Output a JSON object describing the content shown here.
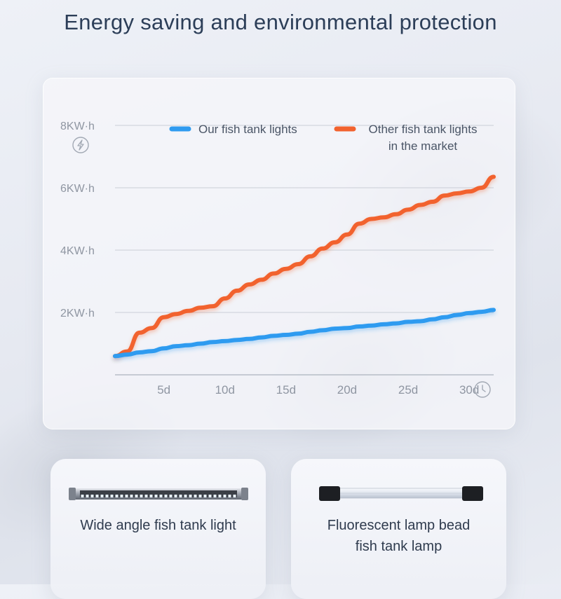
{
  "page": {
    "title": "Energy saving and environmental protection"
  },
  "chart_data": {
    "type": "line",
    "x": [
      1,
      2,
      3,
      4,
      5,
      6,
      7,
      8,
      9,
      10,
      11,
      12,
      13,
      14,
      15,
      16,
      17,
      18,
      19,
      20,
      21,
      22,
      23,
      24,
      25,
      26,
      27,
      28,
      29,
      30,
      31,
      32
    ],
    "xticks": [
      5,
      10,
      15,
      20,
      25,
      30
    ],
    "xtick_labels": [
      "5d",
      "10d",
      "15d",
      "20d",
      "25d",
      "30d"
    ],
    "yticks": [
      2,
      4,
      6,
      8
    ],
    "ytick_labels": [
      "2KW·h",
      "4KW·h",
      "6KW·h",
      "8KW·h"
    ],
    "xlim": [
      1,
      32
    ],
    "ylim": [
      0,
      8
    ],
    "grid": true,
    "legend_position": "top",
    "series": [
      {
        "name": "Our fish tank lights",
        "color": "#2f9bf0",
        "values": [
          0.6,
          0.65,
          0.72,
          0.76,
          0.85,
          0.92,
          0.95,
          1.0,
          1.05,
          1.08,
          1.12,
          1.15,
          1.2,
          1.25,
          1.28,
          1.32,
          1.38,
          1.43,
          1.48,
          1.5,
          1.55,
          1.58,
          1.62,
          1.65,
          1.7,
          1.72,
          1.78,
          1.85,
          1.92,
          1.98,
          2.02,
          2.08
        ]
      },
      {
        "name_lines": [
          "Other fish tank lights",
          "in the market"
        ],
        "color": "#f2622e",
        "values": [
          0.6,
          0.75,
          1.35,
          1.5,
          1.85,
          1.95,
          2.05,
          2.15,
          2.2,
          2.45,
          2.7,
          2.9,
          3.05,
          3.25,
          3.4,
          3.55,
          3.8,
          4.05,
          4.25,
          4.5,
          4.85,
          5.0,
          5.05,
          5.15,
          5.3,
          5.45,
          5.55,
          5.75,
          5.82,
          5.88,
          6.0,
          6.35
        ]
      }
    ]
  },
  "products": [
    {
      "label_lines": [
        "Wide angle fish tank light"
      ]
    },
    {
      "label_lines": [
        "Fluorescent lamp bead",
        "fish tank lamp"
      ]
    }
  ],
  "icons": {
    "y_axis": "lightning-bolt-icon",
    "x_axis": "clock-icon"
  }
}
